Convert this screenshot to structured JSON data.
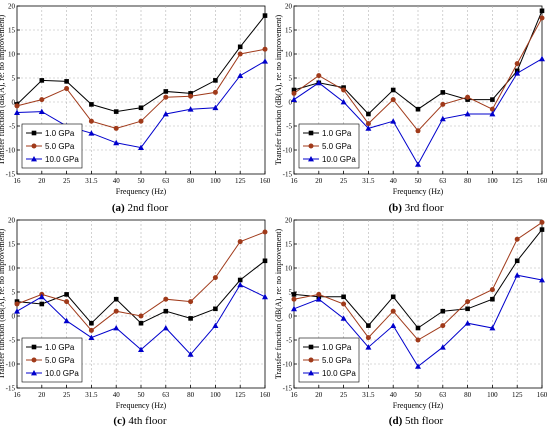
{
  "colors": {
    "s1": "#000000",
    "s2": "#a03a1a",
    "s3": "#0000cc"
  },
  "chart_data": [
    {
      "type": "line",
      "categories": [
        "16",
        "20",
        "25",
        "31.5",
        "40",
        "50",
        "63",
        "80",
        "100",
        "125",
        "160"
      ],
      "xlabel": "Frequency (Hz)",
      "ylabel": "Transfer function (dB(A), re: no improvement)",
      "ylim": [
        -15,
        20
      ],
      "yticks": [
        -15,
        -10,
        -5,
        0,
        5,
        10,
        15,
        20
      ],
      "grid": true,
      "legend": "bottom-left",
      "caption_id": "(a)",
      "caption_text": " 2nd floor",
      "series": [
        {
          "name": "1.0 GPa",
          "marker": "square",
          "values": [
            -0.5,
            4.5,
            4.3,
            -0.5,
            -2.0,
            -1.2,
            2.2,
            1.8,
            4.5,
            11.5,
            18.0
          ]
        },
        {
          "name": "5.0 GPa",
          "marker": "circle",
          "values": [
            -0.8,
            0.5,
            2.8,
            -4.0,
            -5.5,
            -4.0,
            1.0,
            1.2,
            2.0,
            10.0,
            11.0
          ]
        },
        {
          "name": "10.0 GPa",
          "marker": "triangle",
          "values": [
            -2.2,
            -2.0,
            -5.0,
            -6.5,
            -8.5,
            -9.5,
            -2.5,
            -1.5,
            -1.2,
            5.5,
            8.5
          ]
        }
      ]
    },
    {
      "type": "line",
      "categories": [
        "16",
        "20",
        "25",
        "31.5",
        "40",
        "50",
        "63",
        "80",
        "100",
        "125",
        "160"
      ],
      "xlabel": "Frequency (Hz)",
      "ylabel": "Transfer function (dB(A), re: no improvement)",
      "ylim": [
        -15,
        20
      ],
      "yticks": [
        -15,
        -10,
        -5,
        0,
        5,
        10,
        15,
        20
      ],
      "grid": true,
      "legend": "bottom-left",
      "caption_id": "(b)",
      "caption_text": " 3rd floor",
      "series": [
        {
          "name": "1.0 GPa",
          "marker": "square",
          "values": [
            2.5,
            4.0,
            3.0,
            -2.5,
            2.5,
            -1.5,
            2.0,
            0.5,
            0.5,
            6.5,
            19.0
          ]
        },
        {
          "name": "5.0 GPa",
          "marker": "circle",
          "values": [
            1.8,
            5.5,
            2.5,
            -4.5,
            0.5,
            -6.0,
            -0.5,
            1.0,
            -1.5,
            8.0,
            17.5
          ]
        },
        {
          "name": "10.0 GPa",
          "marker": "triangle",
          "values": [
            0.5,
            4.0,
            0.0,
            -5.5,
            -4.0,
            -13.0,
            -3.5,
            -2.5,
            -2.5,
            6.0,
            9.0
          ]
        }
      ]
    },
    {
      "type": "line",
      "categories": [
        "16",
        "20",
        "25",
        "31.5",
        "40",
        "50",
        "63",
        "80",
        "100",
        "125",
        "160"
      ],
      "xlabel": "Frequency (Hz)",
      "ylabel": "Transfer function (dB(A), re: no improvement)",
      "ylim": [
        -15,
        20
      ],
      "yticks": [
        -15,
        -10,
        -5,
        0,
        5,
        10,
        15,
        20
      ],
      "grid": true,
      "legend": "bottom-left",
      "caption_id": "(c)",
      "caption_text": " 4th floor",
      "series": [
        {
          "name": "1.0 GPa",
          "marker": "square",
          "values": [
            3.0,
            2.5,
            4.5,
            -1.5,
            3.5,
            -1.5,
            1.0,
            -0.5,
            1.5,
            7.5,
            11.5
          ]
        },
        {
          "name": "5.0 GPa",
          "marker": "circle",
          "values": [
            2.5,
            4.5,
            3.0,
            -3.0,
            1.0,
            0.0,
            3.5,
            3.0,
            8.0,
            15.5,
            17.5
          ]
        },
        {
          "name": "10.0 GPa",
          "marker": "triangle",
          "values": [
            1.0,
            4.0,
            -1.0,
            -4.5,
            -2.5,
            -7.0,
            -2.5,
            -8.0,
            -2.0,
            6.5,
            4.0
          ]
        }
      ]
    },
    {
      "type": "line",
      "categories": [
        "16",
        "20",
        "25",
        "31.5",
        "40",
        "50",
        "63",
        "80",
        "100",
        "125",
        "160"
      ],
      "xlabel": "Frequency (Hz)",
      "ylabel": "Transfer function (dB(A), re: no improvement)",
      "ylim": [
        -15,
        20
      ],
      "yticks": [
        -15,
        -10,
        -5,
        0,
        5,
        10,
        15,
        20
      ],
      "grid": true,
      "legend": "bottom-left",
      "caption_id": "(d)",
      "caption_text": " 5th floor",
      "series": [
        {
          "name": "1.0 GPa",
          "marker": "square",
          "values": [
            4.5,
            4.0,
            4.0,
            -2.0,
            4.0,
            -2.5,
            1.0,
            1.5,
            3.5,
            11.5,
            18.0
          ]
        },
        {
          "name": "5.0 GPa",
          "marker": "circle",
          "values": [
            3.5,
            4.5,
            2.5,
            -4.5,
            1.0,
            -5.0,
            -2.0,
            3.0,
            5.5,
            16.0,
            19.5
          ]
        },
        {
          "name": "10.0 GPa",
          "marker": "triangle",
          "values": [
            1.5,
            3.5,
            -0.5,
            -6.5,
            -2.0,
            -10.5,
            -6.5,
            -1.5,
            -2.5,
            8.5,
            7.5
          ]
        }
      ]
    }
  ]
}
